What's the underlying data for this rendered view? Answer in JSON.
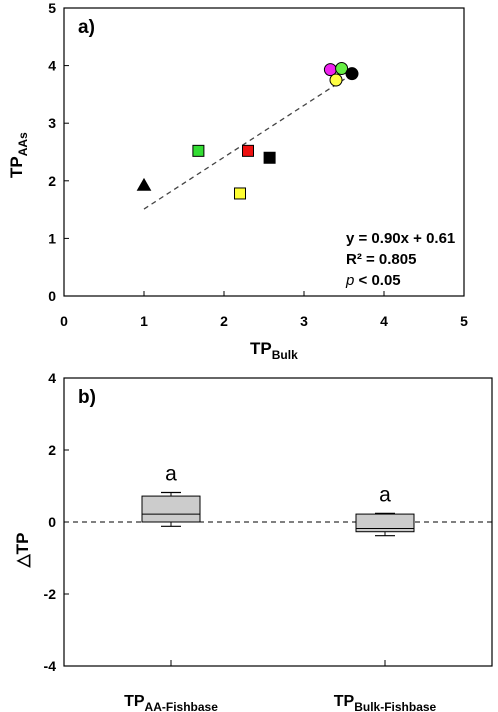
{
  "chart_data": [
    {
      "type": "scatter",
      "panel_label": "a)",
      "xlabel": {
        "main": "TP",
        "sub": "Bulk"
      },
      "ylabel": {
        "main": "TP",
        "sub": "AAs"
      },
      "xlim": [
        0,
        5
      ],
      "ylim": [
        0,
        5
      ],
      "xticks": [
        "0",
        "1",
        "2",
        "3",
        "4",
        "5"
      ],
      "yticks": [
        "0",
        "1",
        "2",
        "3",
        "4",
        "5"
      ],
      "points": [
        {
          "x": 1.0,
          "y": 1.92,
          "marker": "triangle",
          "color": "#000000"
        },
        {
          "x": 1.68,
          "y": 2.52,
          "marker": "square",
          "color": "#33dd33"
        },
        {
          "x": 2.3,
          "y": 2.52,
          "marker": "square",
          "color": "#ee1111"
        },
        {
          "x": 2.2,
          "y": 1.78,
          "marker": "square",
          "color": "#ffff33"
        },
        {
          "x": 2.57,
          "y": 2.4,
          "marker": "square",
          "color": "#000000"
        },
        {
          "x": 3.33,
          "y": 3.93,
          "marker": "circle",
          "color": "#ee22ee"
        },
        {
          "x": 3.47,
          "y": 3.95,
          "marker": "circle",
          "color": "#66ee44"
        },
        {
          "x": 3.6,
          "y": 3.86,
          "marker": "circle",
          "color": "#000000"
        },
        {
          "x": 3.4,
          "y": 3.75,
          "marker": "circle",
          "color": "#ffff44"
        }
      ],
      "trendline": {
        "slope": 0.9,
        "intercept": 0.61,
        "x_range": [
          1.0,
          3.6
        ],
        "style": "dashed"
      },
      "annotations": {
        "equation": "y = 0.90x + 0.61",
        "r2": "R² = 0.805",
        "p_symbol": "p",
        "p_value": " < 0.05"
      },
      "grid": false
    },
    {
      "type": "box",
      "panel_label": "b)",
      "ylabel": "△TP",
      "ylim": [
        -4,
        4
      ],
      "yticks": [
        "-4",
        "-2",
        "0",
        "2",
        "4"
      ],
      "reference_line": {
        "y": 0,
        "style": "dashed"
      },
      "categories": [
        {
          "main": "TP",
          "sub": "AA-Fishbase"
        },
        {
          "main": "TP",
          "sub": "Bulk-Fishbase"
        }
      ],
      "boxes": [
        {
          "whisker_low": -0.12,
          "q1": 0.0,
          "median": 0.22,
          "q3": 0.72,
          "whisker_high": 0.82,
          "label": "a"
        },
        {
          "whisker_low": -0.38,
          "q1": -0.27,
          "median": -0.18,
          "q3": 0.22,
          "whisker_high": 0.24,
          "label": "a"
        }
      ],
      "box_fill": "#cccccc",
      "grid": false
    }
  ]
}
